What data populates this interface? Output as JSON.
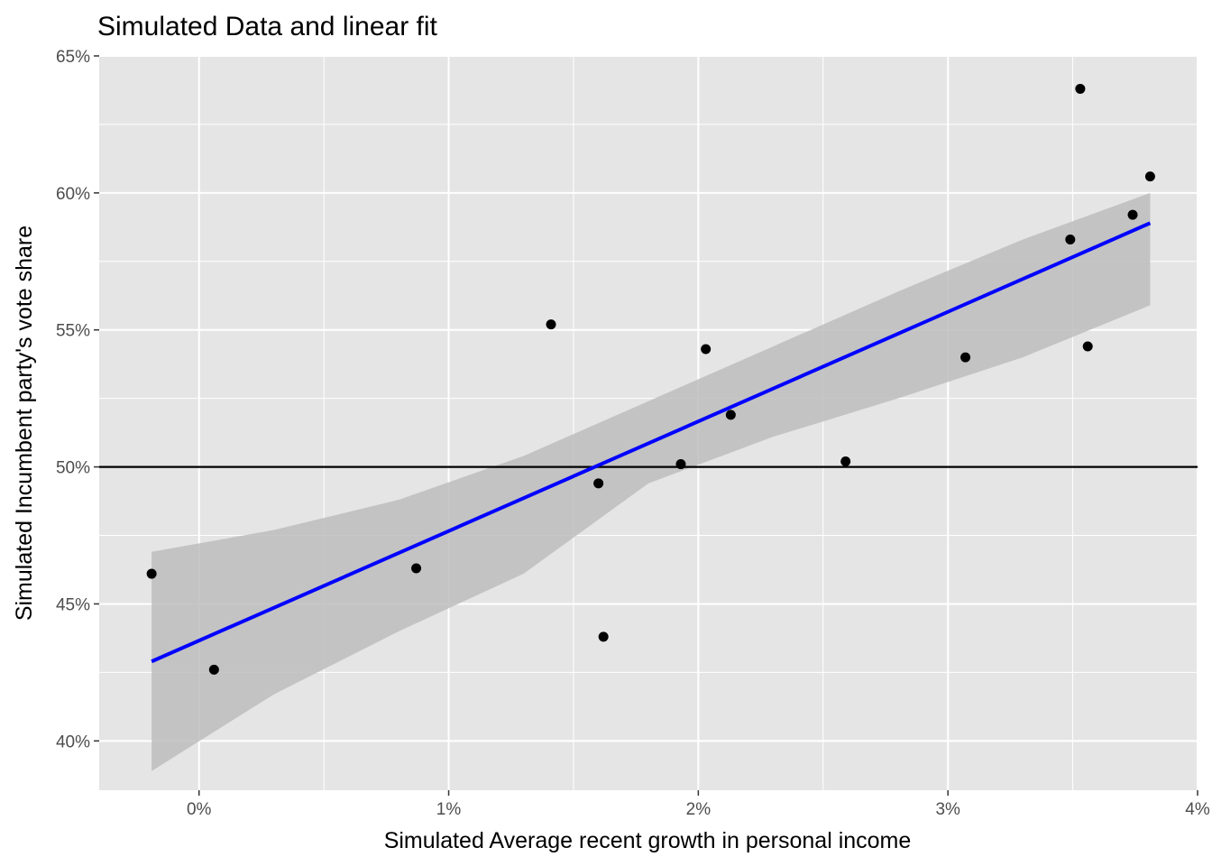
{
  "chart_data": {
    "type": "scatter",
    "title": "Simulated Data and linear fit",
    "xlabel": "Simulated Average recent growth in personal income",
    "ylabel": "Simulated Incumbent party's vote share",
    "xlim": [
      -0.4,
      4.0
    ],
    "ylim": [
      38.2,
      65.0
    ],
    "x_ticks": [
      {
        "value": 0,
        "label": "0%"
      },
      {
        "value": 1,
        "label": "1%"
      },
      {
        "value": 2,
        "label": "2%"
      },
      {
        "value": 3,
        "label": "3%"
      },
      {
        "value": 4,
        "label": "4%"
      }
    ],
    "y_ticks": [
      {
        "value": 40,
        "label": "40%"
      },
      {
        "value": 45,
        "label": "45%"
      },
      {
        "value": 50,
        "label": "50%"
      },
      {
        "value": 55,
        "label": "55%"
      },
      {
        "value": 60,
        "label": "60%"
      },
      {
        "value": 65,
        "label": "65%"
      }
    ],
    "grid": true,
    "legend": "none",
    "reference_line_y": 50,
    "points": [
      {
        "x": -0.19,
        "y": 46.1
      },
      {
        "x": 0.06,
        "y": 42.6
      },
      {
        "x": 0.87,
        "y": 46.3
      },
      {
        "x": 1.41,
        "y": 55.2
      },
      {
        "x": 1.6,
        "y": 49.4
      },
      {
        "x": 1.62,
        "y": 43.8
      },
      {
        "x": 1.93,
        "y": 50.1
      },
      {
        "x": 2.03,
        "y": 54.3
      },
      {
        "x": 2.13,
        "y": 51.9
      },
      {
        "x": 2.59,
        "y": 50.2
      },
      {
        "x": 3.07,
        "y": 54.0
      },
      {
        "x": 3.49,
        "y": 58.3
      },
      {
        "x": 3.53,
        "y": 63.8
      },
      {
        "x": 3.56,
        "y": 54.4
      },
      {
        "x": 3.74,
        "y": 59.2
      },
      {
        "x": 3.81,
        "y": 60.6
      }
    ],
    "fit": {
      "x": [
        -0.19,
        3.81
      ],
      "y": [
        42.9,
        58.9
      ]
    },
    "confidence_band": {
      "x": [
        -0.19,
        0.3,
        0.8,
        1.3,
        1.8,
        2.3,
        2.8,
        3.3,
        3.81
      ],
      "upper": [
        46.9,
        47.7,
        48.8,
        50.4,
        52.4,
        54.4,
        56.4,
        58.3,
        60.0
      ],
      "lower": [
        38.9,
        41.7,
        44.0,
        46.1,
        49.4,
        51.1,
        52.5,
        54.0,
        55.9
      ]
    },
    "colors": {
      "panel": "#e5e5e5",
      "grid": "#ffffff",
      "points": "#000000",
      "fit_line": "#0000ff",
      "band": "#bdbdbd",
      "reference_line": "#000000"
    }
  }
}
